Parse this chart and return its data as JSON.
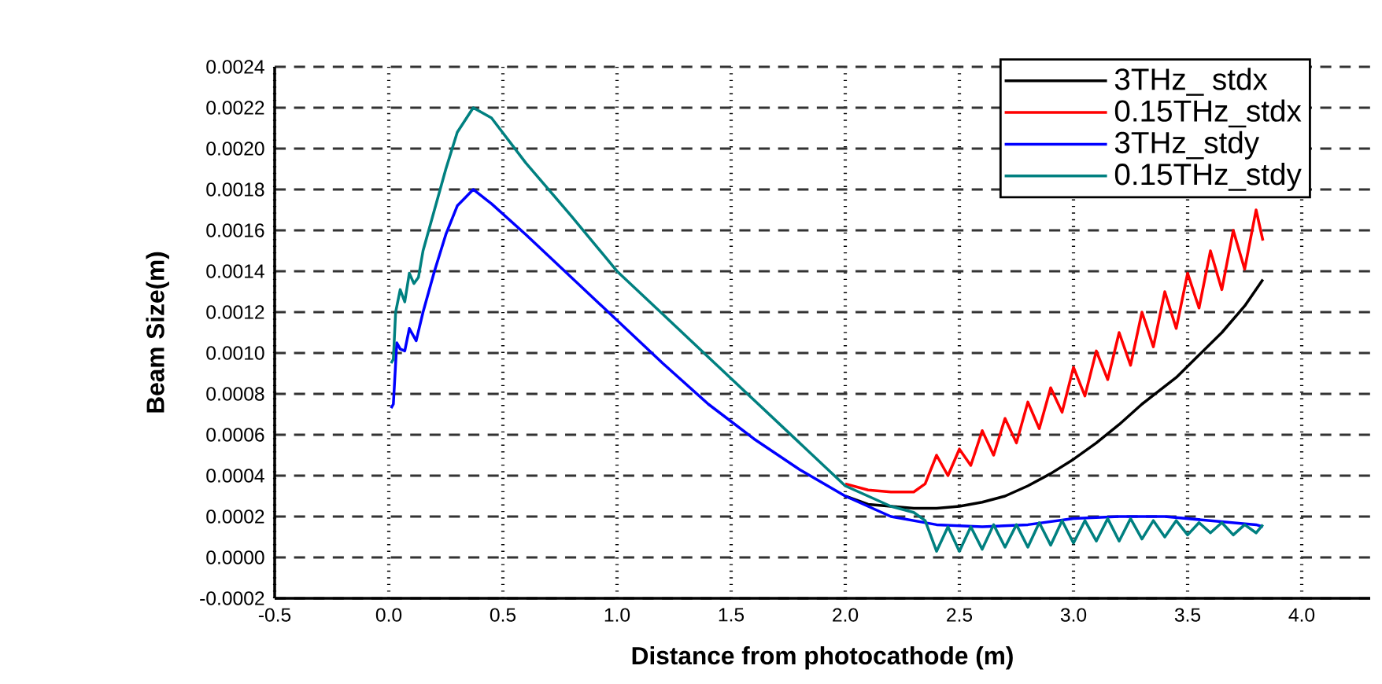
{
  "chart_data": {
    "type": "line",
    "xlabel": "Distance from photocathode (m)",
    "ylabel": "Beam Size(m)",
    "xlim": [
      -0.5,
      4.3
    ],
    "ylim": [
      -0.0002,
      0.0024
    ],
    "xticks": [
      {
        "value": -0.5,
        "label": "-0.5"
      },
      {
        "value": 0,
        "label": "0.0"
      },
      {
        "value": 0.5,
        "label": "0.5"
      },
      {
        "value": 1,
        "label": "1.0"
      },
      {
        "value": 1.5,
        "label": "1.5"
      },
      {
        "value": 2,
        "label": "2.0"
      },
      {
        "value": 2.5,
        "label": "2.5"
      },
      {
        "value": 3,
        "label": "3.0"
      },
      {
        "value": 3.5,
        "label": "3.5"
      },
      {
        "value": 4,
        "label": "4.0"
      }
    ],
    "yticks": [
      {
        "value": -0.0002,
        "label": "-0.0002"
      },
      {
        "value": 0,
        "label": "0.0000"
      },
      {
        "value": 0.0002,
        "label": "0.0002"
      },
      {
        "value": 0.0004,
        "label": "0.0004"
      },
      {
        "value": 0.0006,
        "label": "0.0006"
      },
      {
        "value": 0.0008,
        "label": "0.0008"
      },
      {
        "value": 0.001,
        "label": "0.0010"
      },
      {
        "value": 0.0012,
        "label": "0.0012"
      },
      {
        "value": 0.0014,
        "label": "0.0014"
      },
      {
        "value": 0.0016,
        "label": "0.0016"
      },
      {
        "value": 0.0018,
        "label": "0.0018"
      },
      {
        "value": 0.002,
        "label": "0.0020"
      },
      {
        "value": 0.0022,
        "label": "0.0022"
      },
      {
        "value": 0.0024,
        "label": "0.0024"
      }
    ],
    "grid": true,
    "legend": "top right",
    "marker": "none",
    "line_style": "solid",
    "series": [
      {
        "name": "3THz_ stdx",
        "color": "#000000",
        "x": [
          2.0,
          2.1,
          2.2,
          2.3,
          2.4,
          2.5,
          2.6,
          2.7,
          2.8,
          2.9,
          3.0,
          3.1,
          3.2,
          3.3,
          3.45,
          3.55,
          3.65,
          3.75,
          3.83
        ],
        "values": [
          0.0003,
          0.00026,
          0.00025,
          0.00024,
          0.00024,
          0.00025,
          0.00027,
          0.0003,
          0.00035,
          0.00041,
          0.00048,
          0.00056,
          0.00065,
          0.00075,
          0.00088,
          0.00099,
          0.0011,
          0.00123,
          0.00136
        ]
      },
      {
        "name": "0.15THz_stdx",
        "color": "#ff0000",
        "x": [
          2.0,
          2.1,
          2.2,
          2.3,
          2.35,
          2.4,
          2.45,
          2.5,
          2.55,
          2.6,
          2.65,
          2.7,
          2.75,
          2.8,
          2.85,
          2.9,
          2.95,
          3.0,
          3.05,
          3.1,
          3.15,
          3.2,
          3.25,
          3.3,
          3.35,
          3.4,
          3.45,
          3.5,
          3.55,
          3.6,
          3.65,
          3.7,
          3.75,
          3.8,
          3.83
        ],
        "values": [
          0.00036,
          0.00033,
          0.00032,
          0.00032,
          0.00036,
          0.0005,
          0.0004,
          0.00053,
          0.00045,
          0.00062,
          0.0005,
          0.00068,
          0.00056,
          0.00076,
          0.00063,
          0.00083,
          0.00071,
          0.00093,
          0.00079,
          0.00101,
          0.00087,
          0.0011,
          0.00094,
          0.0012,
          0.00103,
          0.0013,
          0.00112,
          0.00139,
          0.00122,
          0.0015,
          0.00131,
          0.0016,
          0.00141,
          0.0017,
          0.00155
        ]
      },
      {
        "name": "3THz_stdy",
        "color": "#0000ff",
        "x": [
          0.01,
          0.02,
          0.035,
          0.05,
          0.07,
          0.09,
          0.12,
          0.15,
          0.2,
          0.25,
          0.3,
          0.37,
          0.45,
          0.6,
          0.8,
          1.0,
          1.2,
          1.4,
          1.6,
          1.8,
          2.0,
          2.2,
          2.4,
          2.6,
          2.8,
          3.0,
          3.2,
          3.4,
          3.6,
          3.8,
          3.83
        ],
        "values": [
          0.00073,
          0.00075,
          0.00105,
          0.00102,
          0.00101,
          0.00112,
          0.00106,
          0.0012,
          0.0014,
          0.00158,
          0.00172,
          0.0018,
          0.00173,
          0.00158,
          0.00137,
          0.00116,
          0.00095,
          0.00075,
          0.00058,
          0.00043,
          0.0003,
          0.0002,
          0.00016,
          0.00015,
          0.00016,
          0.00019,
          0.0002,
          0.0002,
          0.00018,
          0.00016,
          0.00015
        ]
      },
      {
        "name": "0.15THz_stdy",
        "color": "#008080",
        "x": [
          0.01,
          0.02,
          0.03,
          0.05,
          0.07,
          0.09,
          0.11,
          0.13,
          0.15,
          0.2,
          0.25,
          0.3,
          0.37,
          0.45,
          0.6,
          0.8,
          1.0,
          1.2,
          1.4,
          1.6,
          1.8,
          2.0,
          2.1,
          2.2,
          2.3,
          2.35,
          2.4,
          2.45,
          2.5,
          2.55,
          2.6,
          2.65,
          2.7,
          2.75,
          2.8,
          2.85,
          2.9,
          2.95,
          3.0,
          3.05,
          3.1,
          3.15,
          3.2,
          3.25,
          3.3,
          3.35,
          3.4,
          3.45,
          3.5,
          3.55,
          3.6,
          3.65,
          3.7,
          3.75,
          3.8,
          3.83
        ],
        "values": [
          0.00095,
          0.00097,
          0.0012,
          0.00131,
          0.00125,
          0.00139,
          0.00134,
          0.00137,
          0.0015,
          0.0017,
          0.0019,
          0.00208,
          0.0022,
          0.00215,
          0.00193,
          0.00167,
          0.0014,
          0.00119,
          0.00098,
          0.00077,
          0.00056,
          0.00035,
          0.0003,
          0.00025,
          0.00022,
          0.00018,
          3e-05,
          0.00015,
          3e-05,
          0.00015,
          4e-05,
          0.00016,
          5e-05,
          0.00016,
          5e-05,
          0.00017,
          6e-05,
          0.00018,
          7e-05,
          0.00018,
          8e-05,
          0.00019,
          8e-05,
          0.00019,
          9e-05,
          0.00018,
          0.0001,
          0.00018,
          0.00011,
          0.00017,
          0.00012,
          0.00017,
          0.00011,
          0.00016,
          0.00012,
          0.00016
        ]
      }
    ]
  }
}
